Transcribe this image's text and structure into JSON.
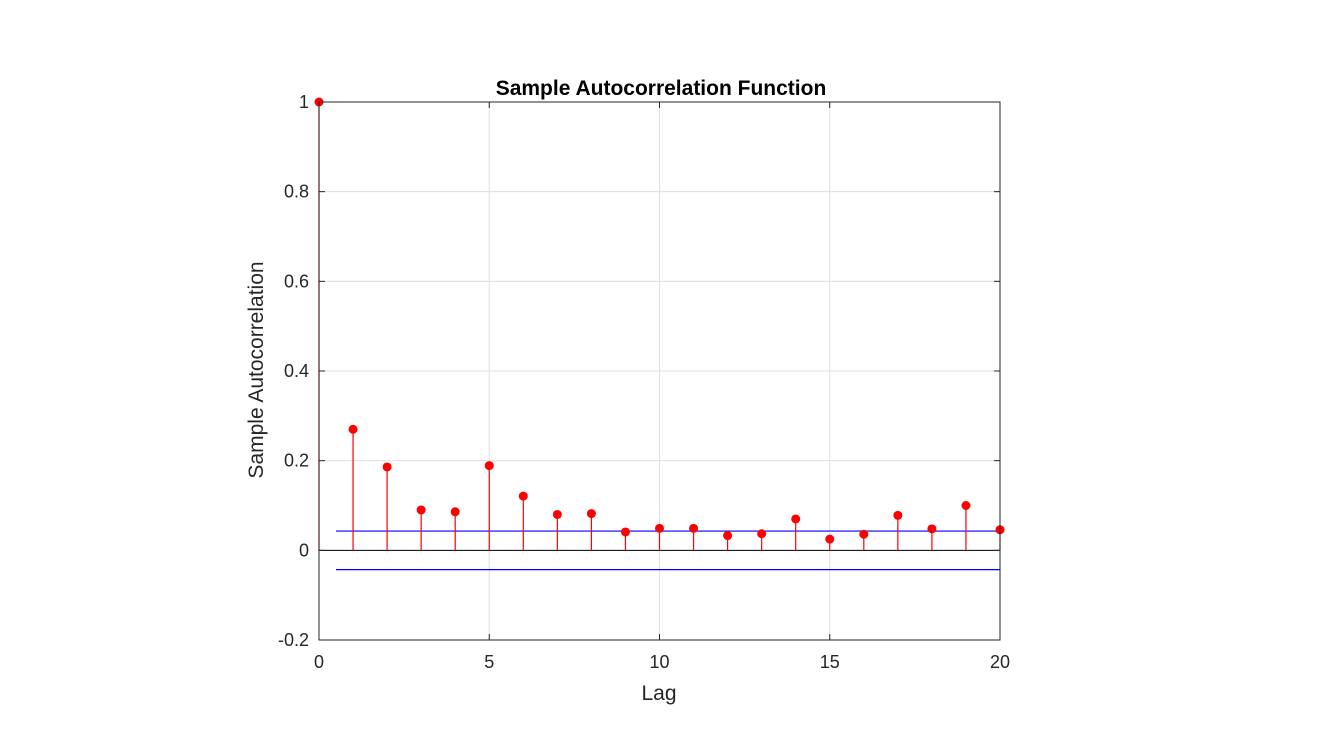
{
  "chart_data": {
    "type": "stem",
    "title": "Sample Autocorrelation Function",
    "xlabel": "Lag",
    "ylabel": "Sample Autocorrelation",
    "xlim": [
      0,
      20
    ],
    "ylim": [
      -0.2,
      1
    ],
    "xticks": [
      0,
      5,
      10,
      15,
      20
    ],
    "xtick_labels": [
      "0",
      "5",
      "10",
      "15",
      "20"
    ],
    "yticks": [
      -0.2,
      0,
      0.2,
      0.4,
      0.6,
      0.8,
      1
    ],
    "ytick_labels": [
      "-0.2",
      "0",
      "0.2",
      "0.4",
      "0.6",
      "0.8",
      "1"
    ],
    "grid": true,
    "series": [
      {
        "x": [
          0,
          1,
          2,
          3,
          4,
          5,
          6,
          7,
          8,
          9,
          10,
          11,
          12,
          13,
          14,
          15,
          16,
          17,
          18,
          19,
          20
        ],
        "values": [
          1.0,
          0.27,
          0.186,
          0.09,
          0.086,
          0.189,
          0.121,
          0.08,
          0.082,
          0.041,
          0.049,
          0.049,
          0.033,
          0.037,
          0.07,
          0.025,
          0.036,
          0.078,
          0.048,
          0.1,
          0.046
        ]
      }
    ],
    "confidence_bounds": {
      "upper": 0.043,
      "lower": -0.043,
      "x_range": [
        0.5,
        20
      ]
    },
    "colors": {
      "stem": "#ff0000",
      "bounds": "#0000ff",
      "zero_line": "#000000",
      "grid": "#dfdfdf",
      "axes": "#262626"
    }
  }
}
